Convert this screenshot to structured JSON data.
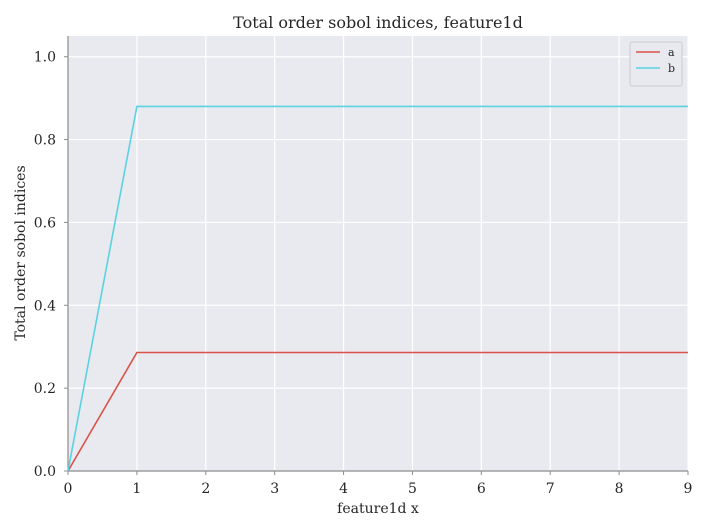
{
  "chart_data": {
    "type": "line",
    "title": "Total order sobol indices, feature1d",
    "xlabel": "feature1d x",
    "ylabel": "Total order sobol indices",
    "x": [
      0,
      1,
      2,
      3,
      4,
      5,
      6,
      7,
      8,
      9
    ],
    "xlim": [
      0,
      9
    ],
    "ylim": [
      0,
      1.05
    ],
    "xticks": [
      "0",
      "1",
      "2",
      "3",
      "4",
      "5",
      "6",
      "7",
      "8",
      "9"
    ],
    "yticks": [
      "0.0",
      "0.2",
      "0.4",
      "0.6",
      "0.8",
      "1.0"
    ],
    "grid": true,
    "legend_position": "top-right",
    "series": [
      {
        "name": "a",
        "color": "#d9534a",
        "values": [
          0.0,
          0.286,
          0.286,
          0.286,
          0.286,
          0.286,
          0.286,
          0.286,
          0.286,
          0.286
        ]
      },
      {
        "name": "b",
        "color": "#5bd2e0",
        "values": [
          0.0,
          0.88,
          0.88,
          0.88,
          0.88,
          0.88,
          0.88,
          0.88,
          0.88,
          0.88
        ]
      }
    ],
    "colors": {
      "background": "#e9e9f0",
      "grid": "#ffffff",
      "axis": "#8c8c8c"
    }
  }
}
